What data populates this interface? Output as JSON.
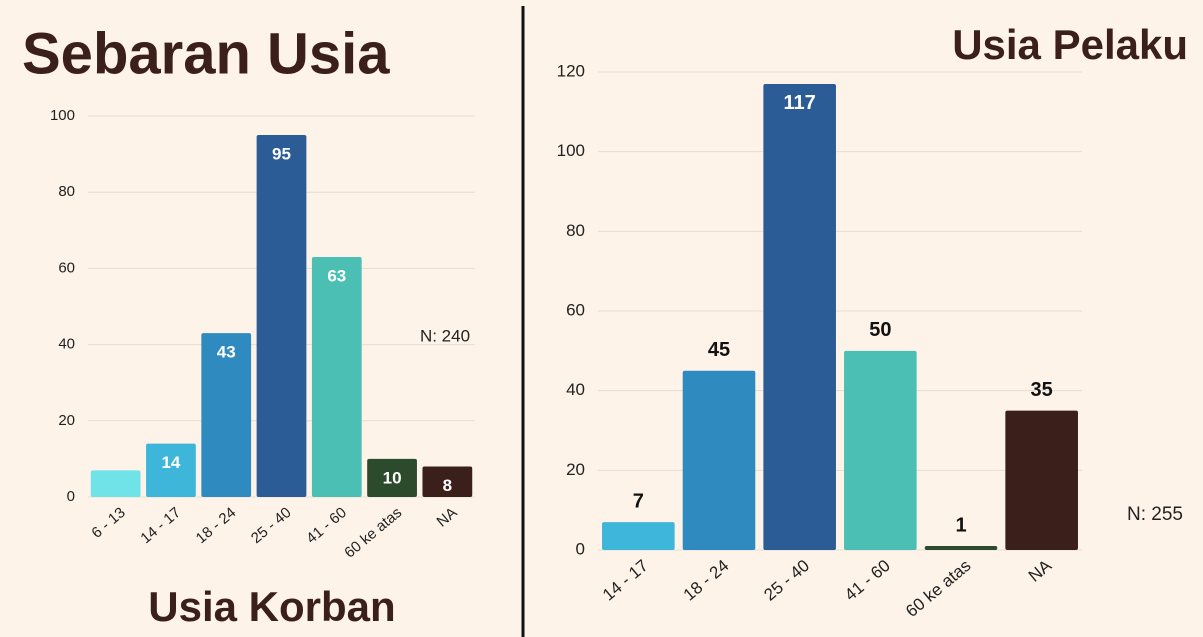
{
  "chart_data": [
    {
      "type": "bar",
      "title": "Sebaran Usia",
      "subtitle": "Usia Korban",
      "annotation": "N: 240",
      "categories": [
        "6 - 13",
        "14 - 17",
        "18 - 24",
        "25 - 40",
        "41 - 60",
        "60 ke atas",
        "NA"
      ],
      "values": [
        7,
        14,
        43,
        95,
        63,
        10,
        8
      ],
      "value_labels": [
        null,
        "14",
        "43",
        "95",
        "63",
        "10",
        "8"
      ],
      "colors": [
        "#6fe3e8",
        "#3eb6d9",
        "#2f8bbf",
        "#2c5c96",
        "#4bbfb4",
        "#2c4a2c",
        "#3a1f1b"
      ],
      "ylim": [
        0,
        100
      ],
      "yticks": [
        0,
        20,
        40,
        60,
        80,
        100
      ],
      "grid": true,
      "label_position": "inside"
    },
    {
      "type": "bar",
      "title": "Usia Pelaku",
      "annotation": "N: 255",
      "categories": [
        "14 - 17",
        "18 - 24",
        "25 - 40",
        "41 - 60",
        "60 ke atas",
        "NA"
      ],
      "values": [
        7,
        45,
        117,
        50,
        1,
        35
      ],
      "colors": [
        "#3eb6d9",
        "#2f8bbf",
        "#2c5c96",
        "#4bbfb4",
        "#2c4a2c",
        "#3a1f1b"
      ],
      "ylim": [
        0,
        120
      ],
      "yticks": [
        0,
        20,
        40,
        60,
        80,
        100,
        120
      ],
      "grid": true,
      "label_position": "outside"
    }
  ]
}
